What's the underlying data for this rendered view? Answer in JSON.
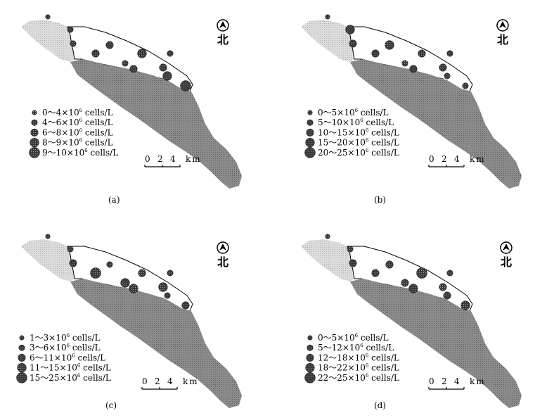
{
  "north_label": "北",
  "scale_bar": {
    "ticks": [
      "0",
      "2",
      "4"
    ],
    "unit": "km"
  },
  "colors": {
    "lake_light": "#d9d9d9",
    "lake_dark": "#8c8c8c",
    "marker": "#3a3a3a"
  },
  "panels": [
    {
      "caption": "(a)",
      "legend": [
        {
          "range": "0～4×10",
          "exp": "6",
          "unit": " cells/L"
        },
        {
          "range": "4～6×10",
          "exp": "6",
          "unit": " cells/L"
        },
        {
          "range": "6～8×10",
          "exp": "6",
          "unit": " cells/L"
        },
        {
          "range": "8～9×10",
          "exp": "6",
          "unit": " cells/L"
        },
        {
          "range": "9～10×10",
          "exp": "6",
          "unit": " cells/L"
        }
      ],
      "stations": [
        {
          "class": 0
        },
        {
          "class": 1
        },
        {
          "class": 1
        },
        {
          "class": 2
        },
        {
          "class": 2
        },
        {
          "class": 1
        },
        {
          "class": 2
        },
        {
          "class": 3
        },
        {
          "class": 2
        },
        {
          "class": 3
        },
        {
          "class": 4
        },
        {
          "class": 1
        }
      ]
    },
    {
      "caption": "(b)",
      "legend": [
        {
          "range": "0～5×10",
          "exp": "6",
          "unit": " cells/L"
        },
        {
          "range": "5～10×10",
          "exp": "6",
          "unit": " cells/L"
        },
        {
          "range": "10～15×10",
          "exp": "6",
          "unit": " cells/L"
        },
        {
          "range": "15～20×10",
          "exp": "6",
          "unit": " cells/L"
        },
        {
          "range": "20～25×10",
          "exp": "6",
          "unit": " cells/L"
        }
      ],
      "stations": [
        {
          "class": 0
        },
        {
          "class": 3
        },
        {
          "class": 2
        },
        {
          "class": 2
        },
        {
          "class": 3
        },
        {
          "class": 1
        },
        {
          "class": 2
        },
        {
          "class": 2
        },
        {
          "class": 2
        },
        {
          "class": 1
        },
        {
          "class": 1
        },
        {
          "class": 1
        }
      ]
    },
    {
      "caption": "(c)",
      "legend": [
        {
          "range": "1～3×10",
          "exp": "6",
          "unit": " cells/L"
        },
        {
          "range": "3～6×10",
          "exp": "6",
          "unit": " cells/L"
        },
        {
          "range": "6～11×10",
          "exp": "6",
          "unit": " cells/L"
        },
        {
          "range": "11～15×10",
          "exp": "6",
          "unit": " cells/L"
        },
        {
          "range": "15～25×10",
          "exp": "6",
          "unit": " cells/L"
        }
      ],
      "stations": [
        {
          "class": 0
        },
        {
          "class": 1
        },
        {
          "class": 2
        },
        {
          "class": 4
        },
        {
          "class": 1
        },
        {
          "class": 3
        },
        {
          "class": 3
        },
        {
          "class": 2
        },
        {
          "class": 3
        },
        {
          "class": 1
        },
        {
          "class": 2
        },
        {
          "class": 1
        }
      ]
    },
    {
      "caption": "(d)",
      "legend": [
        {
          "range": "0～5×10",
          "exp": "6",
          "unit": " cells/L"
        },
        {
          "range": "5～12×10",
          "exp": "6",
          "unit": " cells/L"
        },
        {
          "range": "12～18×10",
          "exp": "6",
          "unit": " cells/L"
        },
        {
          "range": "18～22×10",
          "exp": "6",
          "unit": " cells/L"
        },
        {
          "range": "22～25×10",
          "exp": "6",
          "unit": " cells/L"
        }
      ],
      "stations": [
        {
          "class": 0
        },
        {
          "class": 1
        },
        {
          "class": 2
        },
        {
          "class": 2
        },
        {
          "class": 2
        },
        {
          "class": 2
        },
        {
          "class": 3
        },
        {
          "class": 4
        },
        {
          "class": 2
        },
        {
          "class": 2
        },
        {
          "class": 3
        },
        {
          "class": 1
        }
      ]
    }
  ]
}
